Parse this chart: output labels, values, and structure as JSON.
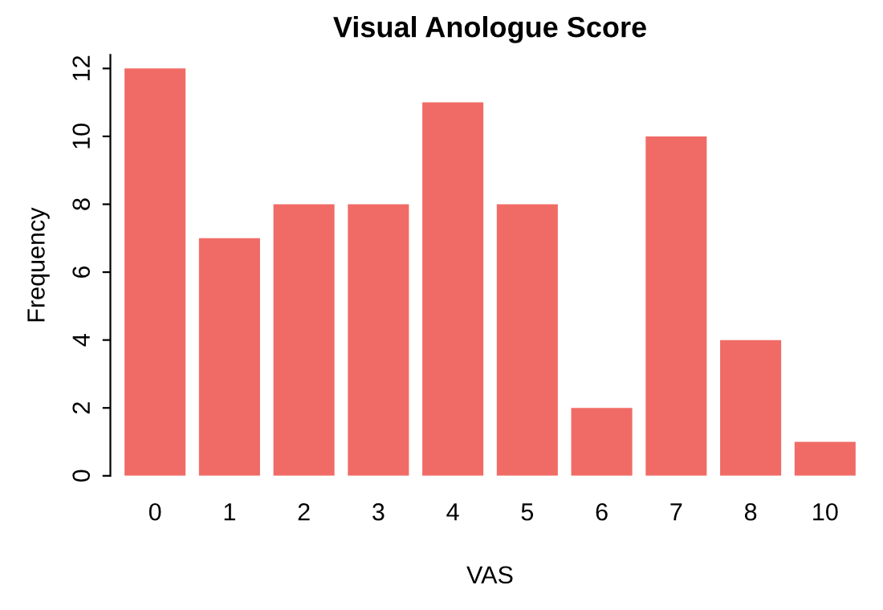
{
  "chart_data": {
    "type": "bar",
    "title": "Visual Anologue Score",
    "xlabel": "VAS",
    "ylabel": "Frequency",
    "categories": [
      "0",
      "1",
      "2",
      "3",
      "4",
      "5",
      "6",
      "7",
      "8",
      "10"
    ],
    "values": [
      12,
      7,
      8,
      8,
      11,
      8,
      2,
      10,
      4,
      1
    ],
    "color": "#f06b66",
    "ylim": [
      0,
      12.4
    ],
    "yticks": [
      0,
      2,
      4,
      6,
      8,
      10,
      12
    ],
    "grid": false,
    "legend": false
  }
}
